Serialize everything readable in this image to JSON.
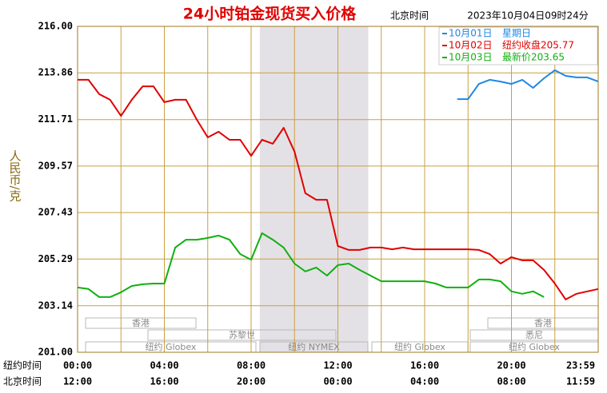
{
  "chart_data": {
    "type": "line",
    "title": "24小时铂金现货买入价格",
    "time_zone": "北京时间",
    "timestamp": "2023年10月04日09时24分",
    "y_label": "人民币/克",
    "xlim": [
      0,
      24
    ],
    "xticks": [
      0,
      2,
      4,
      6,
      8,
      10,
      12,
      14,
      16,
      18,
      20,
      22,
      24
    ],
    "x_label_rows": [
      {
        "name": "纽约时间",
        "ticks": [
          {
            "value": 0,
            "label": "00:00"
          },
          {
            "value": 4,
            "label": "04:00"
          },
          {
            "value": 8,
            "label": "08:00"
          },
          {
            "value": 12,
            "label": "12:00"
          },
          {
            "value": 16,
            "label": "16:00"
          },
          {
            "value": 20,
            "label": "20:00"
          },
          {
            "value": 23.98,
            "label": "23:59"
          }
        ]
      },
      {
        "name": "北京时间",
        "ticks": [
          {
            "value": 0,
            "label": "12:00"
          },
          {
            "value": 4,
            "label": "16:00"
          },
          {
            "value": 8,
            "label": "20:00"
          },
          {
            "value": 12,
            "label": "00:00"
          },
          {
            "value": 16,
            "label": "04:00"
          },
          {
            "value": 20,
            "label": "08:00"
          },
          {
            "value": 23.98,
            "label": "11:59"
          }
        ]
      }
    ],
    "ylim": [
      201,
      216
    ],
    "yticks": [
      {
        "value": 216,
        "label": "216.00"
      },
      213.86,
      211.71,
      209.57,
      207.43,
      205.29,
      203.14,
      {
        "value": 201,
        "label": "201.00"
      }
    ],
    "grid": true,
    "shaded_span": [
      8.4,
      13.4
    ],
    "sessions": [
      "香港",
      "苏黎世",
      "纽约 Globex",
      "纽约 NYMEX",
      "纽约 Globex",
      "香港",
      "悉尼",
      "纽约 Globex"
    ],
    "x": [
      0,
      0.5,
      1,
      1.5,
      2,
      2.5,
      3,
      3.5,
      4,
      4.5,
      5,
      5.5,
      6,
      6.5,
      7,
      7.5,
      8,
      8.5,
      9,
      9.5,
      10,
      10.5,
      11,
      11.5,
      12,
      12.5,
      13,
      13.5,
      14,
      14.5,
      15,
      15.5,
      16,
      16.5,
      17,
      17.5,
      18,
      18.5,
      19,
      19.5,
      20,
      20.5,
      21,
      21.5,
      22,
      22.5,
      23,
      23.5,
      24
    ],
    "series": [
      {
        "name": "10月01日",
        "legend_note": "星期日",
        "color": "#1e88e5",
        "values": [
          null,
          null,
          null,
          null,
          null,
          null,
          null,
          null,
          null,
          null,
          null,
          null,
          null,
          null,
          null,
          null,
          null,
          null,
          null,
          null,
          null,
          null,
          null,
          null,
          null,
          null,
          null,
          null,
          null,
          null,
          null,
          null,
          null,
          null,
          null,
          212.65,
          212.65,
          213.35,
          213.54,
          213.46,
          213.35,
          213.54,
          213.17,
          213.61,
          213.98,
          213.72,
          213.65,
          213.65,
          213.46
        ]
      },
      {
        "name": "10月02日",
        "legend_note": "纽约收盘205.77",
        "color": "#e00000",
        "values": [
          213.54,
          213.54,
          212.88,
          212.62,
          211.88,
          212.62,
          213.24,
          213.24,
          212.51,
          212.62,
          212.62,
          211.7,
          210.89,
          211.15,
          210.78,
          210.78,
          210.04,
          210.78,
          210.6,
          211.33,
          210.23,
          208.32,
          208.02,
          208.02,
          205.89,
          205.71,
          205.71,
          205.82,
          205.82,
          205.74,
          205.82,
          205.74,
          205.74,
          205.74,
          205.74,
          205.74,
          205.74,
          205.71,
          205.52,
          205.08,
          205.38,
          205.23,
          205.23,
          204.79,
          204.16,
          203.43,
          203.69,
          203.8,
          203.91
        ]
      },
      {
        "name": "10月03日",
        "legend_note": "最新价203.65",
        "color": "#10b010",
        "values": [
          203.98,
          203.91,
          203.54,
          203.54,
          203.76,
          204.05,
          204.13,
          204.16,
          204.16,
          205.82,
          206.18,
          206.18,
          206.26,
          206.37,
          206.18,
          205.52,
          205.26,
          206.48,
          206.18,
          205.82,
          205.08,
          204.72,
          204.9,
          204.53,
          205.01,
          205.08,
          204.79,
          204.53,
          204.27,
          204.27,
          204.27,
          204.27,
          204.27,
          204.16,
          203.98,
          203.98,
          203.98,
          204.35,
          204.35,
          204.27,
          203.8,
          203.69,
          203.8,
          203.54,
          null,
          null,
          null,
          null,
          null
        ]
      }
    ]
  }
}
